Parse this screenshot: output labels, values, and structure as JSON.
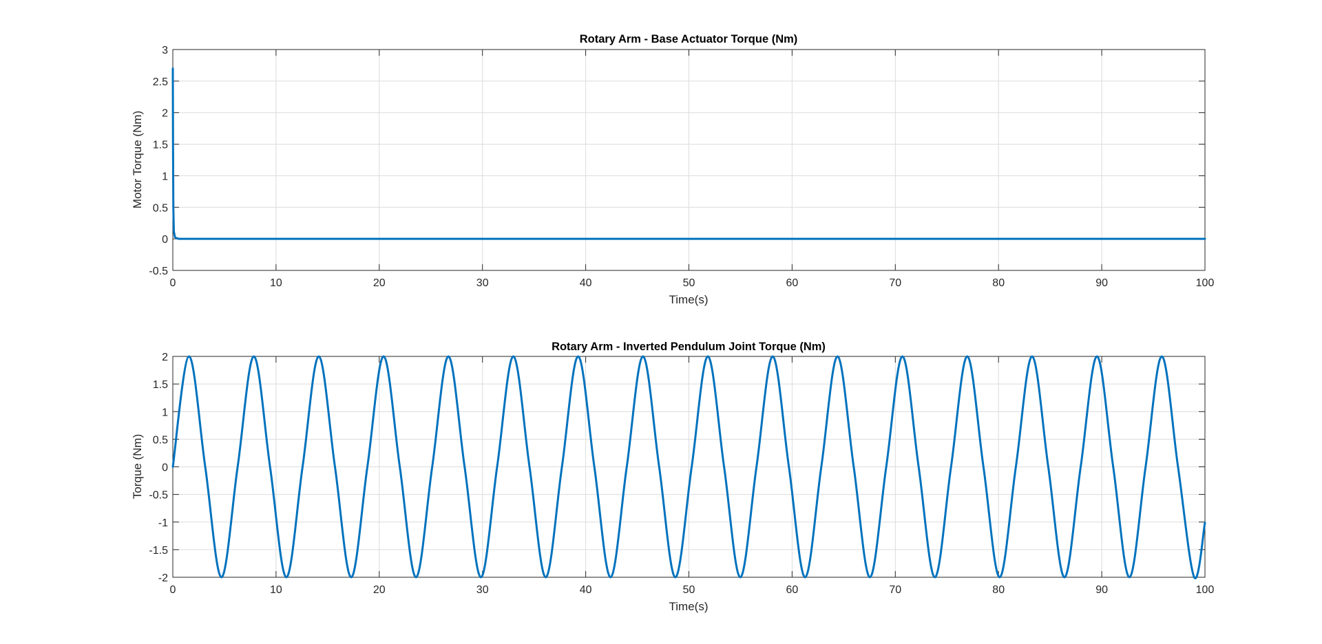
{
  "chart_data": [
    {
      "type": "line",
      "title": "Rotary Arm - Base Actuator Torque (Nm)",
      "xlabel": "Time(s)",
      "ylabel": "Motor Torque (Nm)",
      "xlim": [
        0,
        100
      ],
      "ylim": [
        -0.5,
        3
      ],
      "xticks": [
        0,
        10,
        20,
        30,
        40,
        50,
        60,
        70,
        80,
        90,
        100
      ],
      "yticks": [
        -0.5,
        0,
        0.5,
        1,
        1.5,
        2,
        2.5,
        3
      ],
      "xtick_labels": [
        "0",
        "10",
        "20",
        "30",
        "40",
        "50",
        "60",
        "70",
        "80",
        "90",
        "100"
      ],
      "ytick_labels": [
        "-0.5",
        "0",
        "0.5",
        "1",
        "1.5",
        "2",
        "2.5",
        "3"
      ],
      "grid": true,
      "color": "#0072BD",
      "series": [
        {
          "x": [
            0,
            0.02,
            0.05,
            0.1,
            0.2,
            0.35,
            0.6,
            1,
            2,
            5,
            10,
            20,
            30,
            40,
            50,
            60,
            70,
            80,
            90,
            100
          ],
          "y": [
            2.7,
            1.5,
            0.5,
            0.12,
            0.03,
            0.01,
            0,
            0,
            0,
            0,
            0,
            0,
            0,
            0,
            0,
            0,
            0,
            0,
            0,
            0
          ]
        }
      ]
    },
    {
      "type": "line",
      "title": "Rotary Arm - Inverted Pendulum Joint Torque (Nm)",
      "xlabel": "Time(s)",
      "ylabel": "Torque (Nm)",
      "xlim": [
        0,
        100
      ],
      "ylim": [
        -2,
        2
      ],
      "xticks": [
        0,
        10,
        20,
        30,
        40,
        50,
        60,
        70,
        80,
        90,
        100
      ],
      "yticks": [
        -2,
        -1.5,
        -1,
        -0.5,
        0,
        0.5,
        1,
        1.5,
        2
      ],
      "xtick_labels": [
        "0",
        "10",
        "20",
        "30",
        "40",
        "50",
        "60",
        "70",
        "80",
        "90",
        "100"
      ],
      "ytick_labels": [
        "-2",
        "-1.5",
        "-1",
        "-0.5",
        "0",
        "0.5",
        "1",
        "1.5",
        "2"
      ],
      "grid": true,
      "color": "#0072BD",
      "series": [
        {
          "x": [
            0,
            1.57,
            3.14,
            4.71,
            6.28,
            7.85,
            9.42,
            11.0,
            12.57,
            14.14,
            15.71,
            17.28,
            18.85,
            20.42,
            21.99,
            23.56,
            25.13,
            26.7,
            28.27,
            29.85,
            31.42,
            32.99,
            34.56,
            36.13,
            37.7,
            39.27,
            40.84,
            42.41,
            43.98,
            45.55,
            47.12,
            48.69,
            50.27,
            51.84,
            53.41,
            54.98,
            56.55,
            58.12,
            59.69,
            61.26,
            62.83,
            64.4,
            65.97,
            67.54,
            69.12,
            70.69,
            72.26,
            73.83,
            75.4,
            76.97,
            78.54,
            80.11,
            81.68,
            83.25,
            84.82,
            86.39,
            87.96,
            89.54,
            91.11,
            92.68,
            94.25,
            95.82,
            97.39,
            98.96,
            100
          ],
          "y": [
            0,
            2,
            0,
            -2,
            0,
            2,
            0,
            -2,
            0,
            2,
            0,
            -2,
            0,
            2,
            0,
            -2,
            0,
            2,
            0,
            -2,
            0,
            2,
            0,
            -2,
            0,
            2,
            0,
            -2,
            0,
            2,
            0,
            -2,
            0,
            2,
            0,
            -2,
            0,
            2,
            0,
            -2,
            0,
            2,
            0,
            -2,
            0,
            2,
            0,
            -2,
            0,
            2,
            0,
            -2,
            0,
            2,
            0,
            -2,
            0,
            2,
            0,
            -2,
            0,
            2,
            0,
            -2,
            -1.01
          ]
        }
      ]
    }
  ]
}
